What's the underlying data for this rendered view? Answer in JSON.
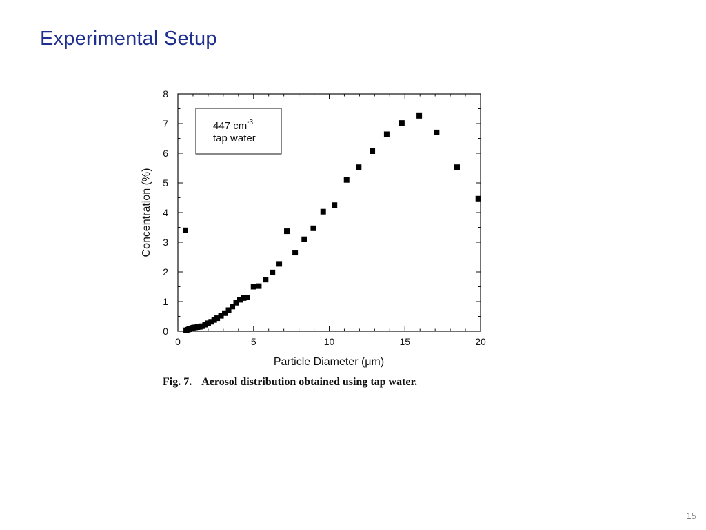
{
  "slide": {
    "title": "Experimental Setup",
    "page_number": "15"
  },
  "figure": {
    "caption_number": "Fig. 7.",
    "caption_text": "Aerosol distribution obtained using tap water.",
    "legend": {
      "line1_value": "447 cm",
      "line1_exponent": "-3",
      "line2": "tap water"
    }
  },
  "chart_data": {
    "type": "scatter",
    "xlabel": "Particle Diameter (μm)",
    "ylabel": "Concentration (%)",
    "xlim": [
      0,
      20
    ],
    "ylim": [
      0,
      8
    ],
    "x_ticks": [
      0,
      5,
      10,
      15,
      20
    ],
    "y_ticks": [
      0,
      1,
      2,
      3,
      4,
      5,
      6,
      7,
      8
    ],
    "grid": false,
    "legend_placement": "top-left",
    "marker": "square",
    "series": [
      {
        "x": [
          0.5,
          0.55,
          0.65,
          0.75,
          0.85,
          0.95,
          1.05,
          1.15,
          1.3,
          1.45,
          1.6,
          1.8,
          2.0,
          2.2,
          2.4,
          2.6,
          2.85,
          3.1,
          3.35,
          3.6,
          3.85,
          4.1,
          4.35,
          4.6,
          5.0,
          5.35,
          5.8,
          6.25,
          6.7,
          7.2,
          7.75,
          8.35,
          8.95,
          9.6,
          10.35,
          11.15,
          11.95,
          12.85,
          13.8,
          14.8,
          15.95,
          17.1,
          18.45,
          19.85
        ],
        "y": [
          3.4,
          0.03,
          0.05,
          0.07,
          0.09,
          0.11,
          0.12,
          0.13,
          0.14,
          0.15,
          0.17,
          0.22,
          0.27,
          0.32,
          0.38,
          0.44,
          0.52,
          0.61,
          0.71,
          0.83,
          0.96,
          1.06,
          1.12,
          1.14,
          1.5,
          1.52,
          1.74,
          1.98,
          2.27,
          3.37,
          2.65,
          3.1,
          3.47,
          4.03,
          4.25,
          5.1,
          5.53,
          6.07,
          6.64,
          7.02,
          7.26,
          6.7,
          5.53,
          4.47
        ]
      }
    ]
  }
}
